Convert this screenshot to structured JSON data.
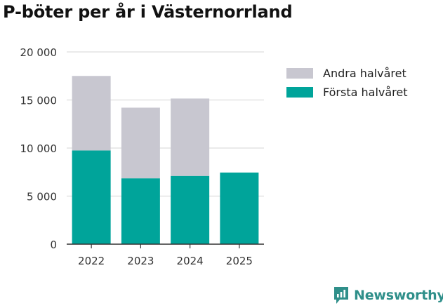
{
  "title": "P-böter per år i Västernorrland",
  "colors": {
    "andra": "#c8c7d0",
    "forsta": "#00a49a",
    "grid": "#dddddd",
    "axis": "#333333",
    "brand": "#2f8f8a"
  },
  "legend": [
    {
      "label": "Andra halvåret",
      "color": "#c8c7d0"
    },
    {
      "label": "Första halvåret",
      "color": "#00a49a"
    }
  ],
  "brand": {
    "name": "Newsworthy",
    "icon": "newsworthy-logo-icon"
  },
  "chart_data": {
    "type": "bar",
    "stacked": true,
    "title": "P-böter per år i Västernorrland",
    "categories": [
      "2022",
      "2023",
      "2024",
      "2025"
    ],
    "series": [
      {
        "name": "Första halvåret",
        "values": [
          9750,
          6850,
          7100,
          7450
        ]
      },
      {
        "name": "Andra halvåret",
        "values": [
          7750,
          7350,
          8050,
          null
        ]
      }
    ],
    "yticks": [
      0,
      5000,
      10000,
      15000,
      20000
    ],
    "ytick_labels": [
      "0",
      "5 000",
      "10 000",
      "15 000",
      "20 000"
    ],
    "ylim": [
      0,
      20000
    ],
    "grid": true,
    "legend_position": "right"
  }
}
